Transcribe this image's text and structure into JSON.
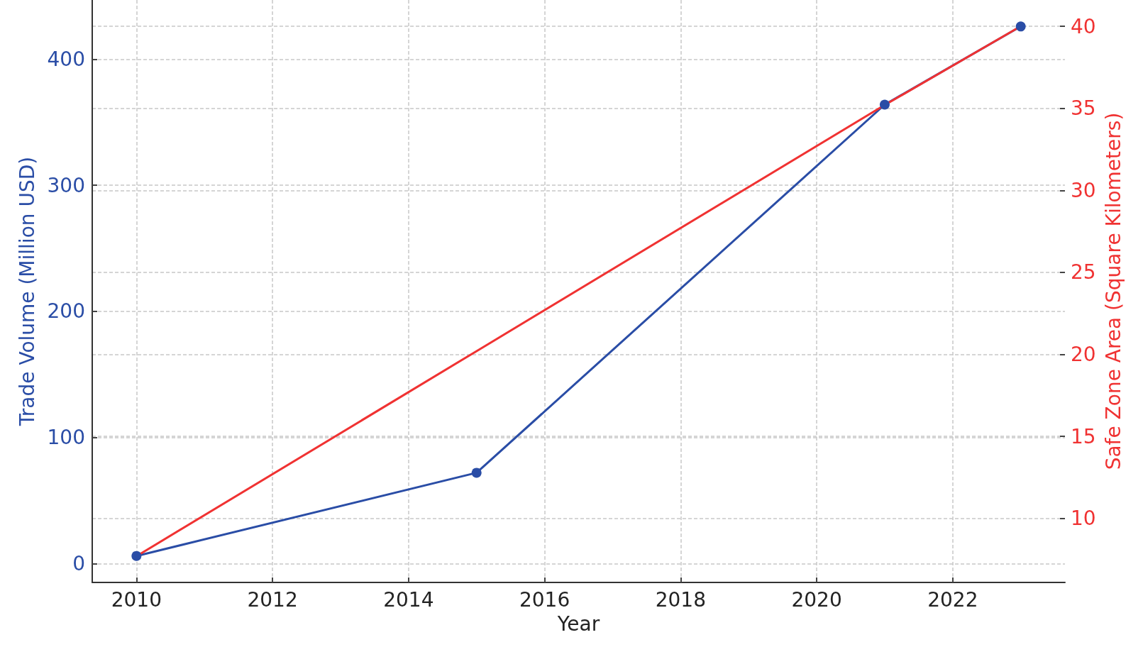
{
  "chart_data": {
    "type": "line",
    "xlabel": "Year",
    "ylabel": "Trade Volume (Million USD)",
    "y2label": "Safe Zone Area (Square Kilometers)",
    "x": [
      2010,
      2015,
      2021,
      2023
    ],
    "series": [
      {
        "color": "#2a4da6",
        "values": [
          6,
          72,
          364,
          426
        ],
        "marker": "circle"
      },
      {
        "color": "#f03232",
        "values": [
          7.7,
          20.2,
          35.2,
          40
        ],
        "axis": "y2",
        "marker": "none"
      }
    ],
    "xlim": [
      2009.35,
      2023.65
    ],
    "xticks": [
      2010,
      2012,
      2014,
      2016,
      2018,
      2020,
      2022
    ],
    "ylim": [
      -15,
      447
    ],
    "yticks": [
      0,
      100,
      200,
      300,
      400
    ],
    "y2lim": [
      6.1,
      41.6
    ],
    "y2ticks": [
      10,
      15,
      20,
      25,
      30,
      35,
      40
    ],
    "grid": true
  }
}
